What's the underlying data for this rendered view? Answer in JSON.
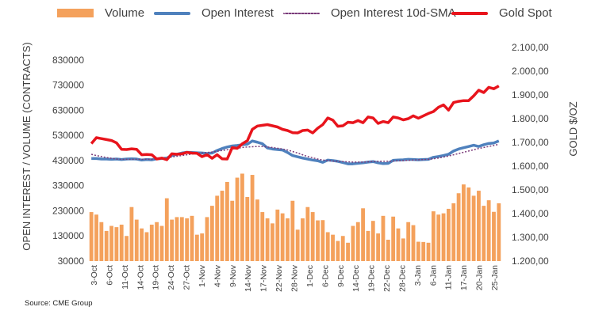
{
  "legend": {
    "volume": "Volume",
    "open_interest": "Open Interest",
    "sma": "Open Interest 10d-SMA",
    "gold": "Gold Spot"
  },
  "source": "Source: CME Group",
  "colors": {
    "volume": "#f4a15c",
    "open_interest": "#4f81bd",
    "sma": "#7a3b7a",
    "gold": "#e8141c",
    "axis_text": "#404040",
    "grid": "#d9d9d9"
  },
  "chart_data": {
    "type": "bar",
    "ylabel": "OPEN INTEREST / VOLUME (CONTRACTS)",
    "y2label": "GOLD $/OZ",
    "ylim": [
      30000,
      880000
    ],
    "y2lim": [
      1200,
      2100
    ],
    "y_ticks": [
      "30000",
      "130000",
      "230000",
      "330000",
      "430000",
      "530000",
      "630000",
      "730000",
      "830000"
    ],
    "y2_ticks": [
      "1.200,00",
      "1.300,00",
      "1.400,00",
      "1.500,00",
      "1.600,00",
      "1.700,00",
      "1.800,00",
      "1.900,00",
      "2.000,00",
      "2.100,00"
    ],
    "x_ticks": [
      "3-Oct",
      "6-Oct",
      "11-Oct",
      "14-Oct",
      "19-Oct",
      "24-Oct",
      "27-Oct",
      "1-Nov",
      "4-Nov",
      "9-Nov",
      "14-Nov",
      "17-Nov",
      "22-Nov",
      "28-Nov",
      "1-Dec",
      "6-Dec",
      "9-Dec",
      "14-Dec",
      "19-Dec",
      "22-Dec",
      "28-Dec",
      "3-Jan",
      "6-Jan",
      "11-Jan",
      "17-Jan",
      "20-Jan",
      "25-Jan"
    ],
    "legend_position": "top",
    "series": [
      {
        "name": "Volume",
        "type": "bar",
        "values": [
          225000,
          215000,
          185000,
          150000,
          170000,
          165000,
          175000,
          130000,
          245000,
          195000,
          160000,
          145000,
          175000,
          185000,
          170000,
          280000,
          195000,
          205000,
          205000,
          200000,
          210000,
          135000,
          140000,
          205000,
          250000,
          290000,
          310000,
          345000,
          270000,
          362000,
          378000,
          285000,
          373000,
          275000,
          225000,
          200000,
          180000,
          235000,
          220000,
          200000,
          270000,
          155000,
          200000,
          245000,
          225000,
          192000,
          193000,
          145000,
          135000,
          110000,
          130000,
          103000,
          170000,
          185000,
          240000,
          150000,
          190000,
          140000,
          210000,
          115000,
          207000,
          160000,
          120000,
          185000,
          173000,
          107000,
          106000,
          103000,
          228000,
          215000,
          220000,
          238000,
          260000,
          300000,
          335000,
          323000,
          290000,
          310000,
          250000,
          272000,
          226000,
          260000
        ]
      },
      {
        "name": "Open Interest",
        "type": "line",
        "values": [
          438000,
          438000,
          436000,
          436000,
          435000,
          436000,
          434000,
          436000,
          437000,
          436000,
          432000,
          434000,
          433000,
          437000,
          438000,
          440000,
          450000,
          455000,
          460000,
          463000,
          462000,
          461000,
          460000,
          458000,
          460000,
          470000,
          478000,
          484000,
          488000,
          490000,
          493000,
          495000,
          508000,
          503000,
          497000,
          480000,
          476000,
          474000,
          472000,
          462000,
          450000,
          445000,
          440000,
          436000,
          432000,
          429000,
          423000,
          432000,
          430000,
          427000,
          422000,
          417000,
          417000,
          419000,
          421000,
          424000,
          426000,
          421000,
          418000,
          419000,
          431000,
          432000,
          433000,
          435000,
          434000,
          433000,
          434000,
          435000,
          443000,
          446000,
          450000,
          455000,
          468000,
          476000,
          481000,
          486000,
          491000,
          486000,
          493000,
          498000,
          500000,
          508000
        ]
      },
      {
        "name": "Open Interest 10d-SMA",
        "type": "line",
        "values": [
          455000,
          450000,
          446000,
          442000,
          439000,
          436000,
          435000,
          435000,
          435000,
          435000,
          435000,
          435000,
          435000,
          436000,
          438000,
          441000,
          444000,
          447000,
          450000,
          453000,
          456000,
          458000,
          460000,
          462000,
          464000,
          467000,
          470000,
          473000,
          476000,
          479000,
          482000,
          484000,
          485000,
          486000,
          486000,
          484000,
          482000,
          479000,
          476000,
          472000,
          466000,
          460000,
          453000,
          446000,
          441000,
          436000,
          432000,
          430000,
          428000,
          427000,
          426000,
          425000,
          424000,
          424000,
          424000,
          425000,
          426000,
          427000,
          427000,
          427000,
          428000,
          429000,
          430000,
          431000,
          432000,
          433000,
          434000,
          435000,
          437000,
          440000,
          444000,
          448000,
          453000,
          458000,
          463000,
          468000,
          473000,
          478000,
          482000,
          486000,
          490000,
          495000
        ]
      },
      {
        "name": "Gold Spot",
        "type": "line",
        "axis": "right",
        "values": [
          1695,
          1720,
          1716,
          1712,
          1708,
          1698,
          1671,
          1670,
          1673,
          1671,
          1648,
          1649,
          1648,
          1630,
          1634,
          1627,
          1652,
          1650,
          1652,
          1658,
          1655,
          1654,
          1640,
          1648,
          1633,
          1648,
          1631,
          1630,
          1678,
          1675,
          1694,
          1707,
          1755,
          1769,
          1772,
          1775,
          1770,
          1765,
          1755,
          1750,
          1741,
          1740,
          1750,
          1752,
          1740,
          1760,
          1775,
          1803,
          1794,
          1768,
          1770,
          1785,
          1783,
          1792,
          1783,
          1807,
          1803,
          1780,
          1788,
          1783,
          1807,
          1803,
          1795,
          1800,
          1812,
          1802,
          1812,
          1822,
          1830,
          1848,
          1858,
          1836,
          1868,
          1873,
          1876,
          1876,
          1896,
          1920,
          1910,
          1932,
          1926,
          1938
        ]
      }
    ]
  }
}
